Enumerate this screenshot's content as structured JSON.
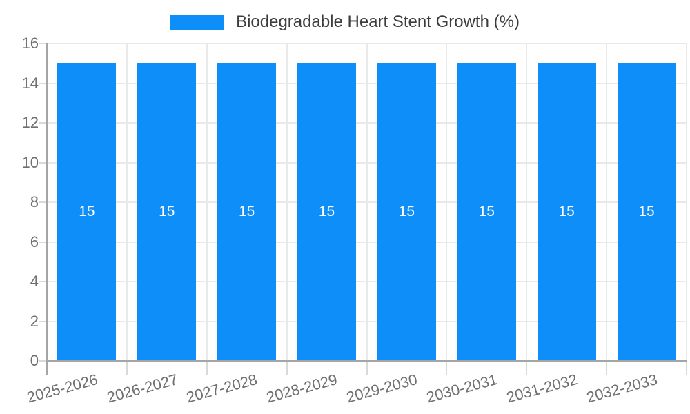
{
  "chart_data": {
    "type": "bar",
    "title": "",
    "legend": {
      "label": "Biodegradable Heart Stent Growth (%)",
      "position": "top"
    },
    "categories": [
      "2025-2026",
      "2026-2027",
      "2027-2028",
      "2028-2029",
      "2029-2030",
      "2030-2031",
      "2031-2032",
      "2032-2033"
    ],
    "series": [
      {
        "name": "Biodegradable Heart Stent Growth (%)",
        "values": [
          15,
          15,
          15,
          15,
          15,
          15,
          15,
          15
        ]
      }
    ],
    "bar_value_labels": [
      "15",
      "15",
      "15",
      "15",
      "15",
      "15",
      "15",
      "15"
    ],
    "xlabel": "",
    "ylabel": "",
    "ylim": [
      0,
      16
    ],
    "yticks": [
      0,
      2,
      4,
      6,
      8,
      10,
      12,
      14,
      16
    ],
    "grid": true,
    "legend_position": "top-center",
    "colors": {
      "bar": "#0d8ef9",
      "gridline": "#e9e9e9",
      "tick": "#d9d9d9",
      "axis": "#a5a5a5",
      "tick_label": "#6f6f6f",
      "legend_text": "#3c3c3c",
      "value_label": "#ffffff",
      "background": "#ffffff"
    }
  }
}
